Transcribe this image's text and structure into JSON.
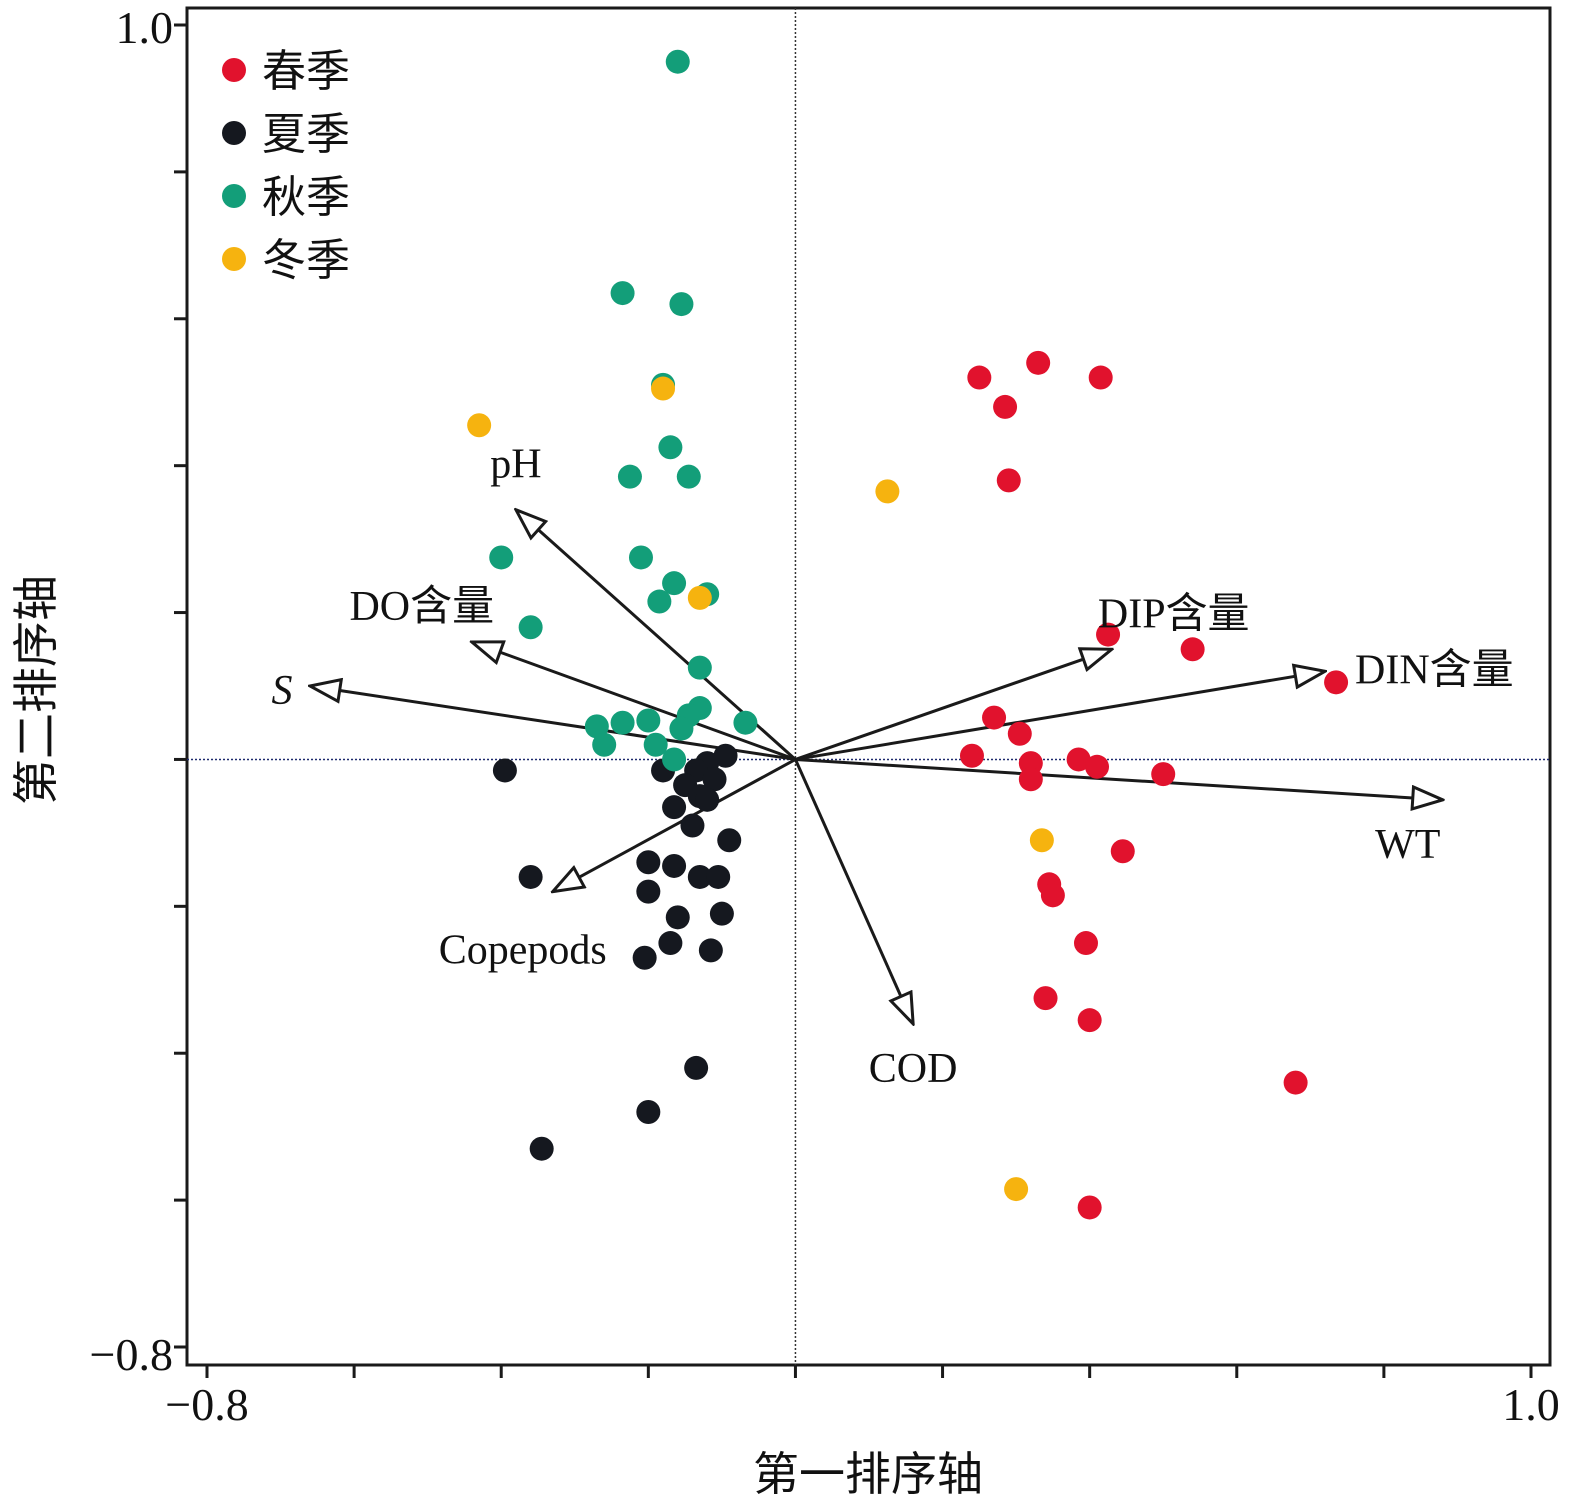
{
  "chart_data": {
    "type": "scatter",
    "xlabel": "第一排序轴",
    "ylabel": "第二排序轴",
    "xlim": [
      -0.8,
      1.0
    ],
    "ylim": [
      -0.8,
      1.0
    ],
    "x_tick_labels": [
      "−0.8",
      "1.0"
    ],
    "y_tick_labels": [
      "1.0",
      "−0.8"
    ],
    "grid": false,
    "reference_lines": {
      "x": 0,
      "y": 0
    },
    "legend_position": "top-left",
    "series": [
      {
        "name": "春季",
        "color": "#e1122d",
        "points": [
          [
            0.25,
            0.52
          ],
          [
            0.33,
            0.54
          ],
          [
            0.415,
            0.52
          ],
          [
            0.285,
            0.48
          ],
          [
            0.29,
            0.38
          ],
          [
            0.425,
            0.17
          ],
          [
            0.54,
            0.15
          ],
          [
            0.735,
            0.105
          ],
          [
            0.27,
            0.057
          ],
          [
            0.305,
            0.035
          ],
          [
            0.24,
            0.005
          ],
          [
            0.385,
            0.0
          ],
          [
            0.32,
            -0.005
          ],
          [
            0.41,
            -0.01
          ],
          [
            0.5,
            -0.02
          ],
          [
            0.32,
            -0.027
          ],
          [
            0.445,
            -0.125
          ],
          [
            0.345,
            -0.17
          ],
          [
            0.35,
            -0.185
          ],
          [
            0.395,
            -0.25
          ],
          [
            0.34,
            -0.325
          ],
          [
            0.4,
            -0.355
          ],
          [
            0.68,
            -0.44
          ],
          [
            0.4,
            -0.61
          ]
        ]
      },
      {
        "name": "夏季",
        "color": "#15181f",
        "points": [
          [
            -0.095,
            0.005
          ],
          [
            -0.395,
            -0.015
          ],
          [
            -0.12,
            -0.005
          ],
          [
            -0.18,
            -0.015
          ],
          [
            -0.135,
            -0.015
          ],
          [
            -0.11,
            -0.027
          ],
          [
            -0.15,
            -0.035
          ],
          [
            -0.13,
            -0.05
          ],
          [
            -0.12,
            -0.055
          ],
          [
            -0.165,
            -0.065
          ],
          [
            -0.14,
            -0.09
          ],
          [
            -0.09,
            -0.11
          ],
          [
            -0.2,
            -0.14
          ],
          [
            -0.165,
            -0.145
          ],
          [
            -0.13,
            -0.16
          ],
          [
            -0.36,
            -0.16
          ],
          [
            -0.105,
            -0.16
          ],
          [
            -0.2,
            -0.18
          ],
          [
            -0.1,
            -0.21
          ],
          [
            -0.16,
            -0.215
          ],
          [
            -0.17,
            -0.25
          ],
          [
            -0.115,
            -0.26
          ],
          [
            -0.205,
            -0.27
          ],
          [
            -0.135,
            -0.42
          ],
          [
            -0.2,
            -0.48
          ],
          [
            -0.345,
            -0.53
          ]
        ]
      },
      {
        "name": "秋季",
        "color": "#139e79",
        "points": [
          [
            -0.16,
            0.95
          ],
          [
            -0.235,
            0.635
          ],
          [
            -0.155,
            0.62
          ],
          [
            -0.18,
            0.51
          ],
          [
            -0.17,
            0.425
          ],
          [
            -0.225,
            0.385
          ],
          [
            -0.145,
            0.385
          ],
          [
            -0.4,
            0.275
          ],
          [
            -0.21,
            0.275
          ],
          [
            -0.165,
            0.24
          ],
          [
            -0.12,
            0.225
          ],
          [
            -0.185,
            0.215
          ],
          [
            -0.36,
            0.18
          ],
          [
            -0.13,
            0.125
          ],
          [
            -0.13,
            0.07
          ],
          [
            -0.145,
            0.06
          ],
          [
            -0.068,
            0.05
          ],
          [
            -0.2,
            0.053
          ],
          [
            -0.235,
            0.05
          ],
          [
            -0.27,
            0.045
          ],
          [
            -0.155,
            0.042
          ],
          [
            -0.26,
            0.02
          ],
          [
            -0.19,
            0.02
          ],
          [
            -0.165,
            0.0
          ]
        ]
      },
      {
        "name": "冬季",
        "color": "#f6b30f",
        "points": [
          [
            -0.43,
            0.455
          ],
          [
            -0.18,
            0.505
          ],
          [
            0.125,
            0.365
          ],
          [
            -0.13,
            0.22
          ],
          [
            0.335,
            -0.11
          ],
          [
            0.3,
            -0.585
          ]
        ]
      }
    ],
    "arrows": [
      {
        "label": "pH",
        "italic": false,
        "x": -0.38,
        "y": 0.34
      },
      {
        "label": "DO含量",
        "italic": false,
        "x": -0.44,
        "y": 0.16
      },
      {
        "label": "S",
        "italic": true,
        "x": -0.66,
        "y": 0.1
      },
      {
        "label": "Copepods",
        "italic": false,
        "x": -0.33,
        "y": -0.18
      },
      {
        "label": "DIP含量",
        "italic": false,
        "x": 0.43,
        "y": 0.15
      },
      {
        "label": "DIN含量",
        "italic": false,
        "x": 0.72,
        "y": 0.12
      },
      {
        "label": "WT",
        "italic": false,
        "x": 0.88,
        "y": -0.055
      },
      {
        "label": "COD",
        "italic": false,
        "x": 0.16,
        "y": -0.36
      }
    ]
  }
}
